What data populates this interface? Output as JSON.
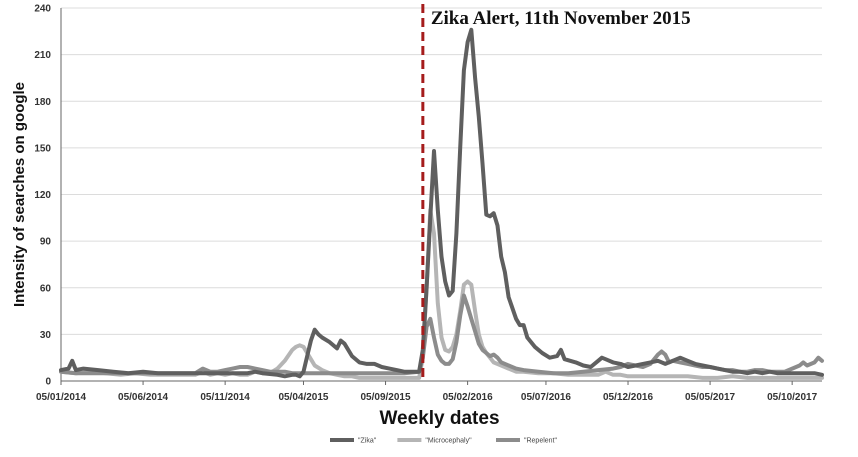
{
  "chart_data": {
    "type": "line",
    "title": "",
    "xlabel": "Weekly dates",
    "ylabel": "Intensity of searches on google",
    "ylim": [
      0,
      240
    ],
    "yticks": [
      0,
      30,
      60,
      90,
      120,
      150,
      180,
      210,
      240
    ],
    "xtick_labels": [
      "05/01/2014",
      "05/06/2014",
      "05/11/2014",
      "05/04/2015",
      "05/09/2015",
      "05/02/2016",
      "05/07/2016",
      "05/12/2016",
      "05/05/2017",
      "05/10/2017"
    ],
    "xtick_weeks": [
      0,
      22,
      44,
      65,
      87,
      109,
      130,
      152,
      174,
      196
    ],
    "x_range_weeks": [
      0,
      204
    ],
    "grid": true,
    "legend_position": "bottom",
    "annotation": {
      "text": "Zika Alert, 11th November 2015",
      "week": 97
    },
    "series": [
      {
        "name": "\"Zika\"",
        "color": "#5f5f5f",
        "points": [
          [
            0,
            7
          ],
          [
            2,
            8
          ],
          [
            3,
            13
          ],
          [
            4,
            7
          ],
          [
            6,
            8
          ],
          [
            10,
            7
          ],
          [
            14,
            6
          ],
          [
            18,
            5
          ],
          [
            22,
            6
          ],
          [
            26,
            5
          ],
          [
            30,
            5
          ],
          [
            34,
            5
          ],
          [
            38,
            5
          ],
          [
            42,
            5
          ],
          [
            46,
            5
          ],
          [
            50,
            5
          ],
          [
            52,
            6
          ],
          [
            54,
            5
          ],
          [
            58,
            4
          ],
          [
            60,
            3
          ],
          [
            62,
            4
          ],
          [
            63,
            4
          ],
          [
            64,
            3
          ],
          [
            65,
            6
          ],
          [
            66,
            16
          ],
          [
            67,
            26
          ],
          [
            68,
            33
          ],
          [
            69,
            30
          ],
          [
            70,
            28
          ],
          [
            72,
            25
          ],
          [
            74,
            21
          ],
          [
            75,
            26
          ],
          [
            76,
            24
          ],
          [
            78,
            16
          ],
          [
            80,
            12
          ],
          [
            82,
            11
          ],
          [
            84,
            11
          ],
          [
            86,
            9
          ],
          [
            88,
            8
          ],
          [
            90,
            7
          ],
          [
            92,
            6
          ],
          [
            94,
            6
          ],
          [
            96,
            6
          ],
          [
            97,
            20
          ],
          [
            98,
            60
          ],
          [
            99,
            105
          ],
          [
            100,
            148
          ],
          [
            101,
            110
          ],
          [
            102,
            80
          ],
          [
            103,
            64
          ],
          [
            104,
            55
          ],
          [
            105,
            58
          ],
          [
            106,
            95
          ],
          [
            107,
            150
          ],
          [
            108,
            200
          ],
          [
            109,
            218
          ],
          [
            110,
            226
          ],
          [
            111,
            195
          ],
          [
            112,
            170
          ],
          [
            113,
            140
          ],
          [
            114,
            107
          ],
          [
            115,
            106
          ],
          [
            116,
            108
          ],
          [
            117,
            100
          ],
          [
            118,
            80
          ],
          [
            119,
            70
          ],
          [
            120,
            54
          ],
          [
            122,
            40
          ],
          [
            123,
            36
          ],
          [
            124,
            36
          ],
          [
            125,
            28
          ],
          [
            127,
            22
          ],
          [
            129,
            18
          ],
          [
            131,
            15
          ],
          [
            133,
            16
          ],
          [
            134,
            20
          ],
          [
            135,
            14
          ],
          [
            138,
            12
          ],
          [
            140,
            10
          ],
          [
            142,
            9
          ],
          [
            144,
            13
          ],
          [
            145,
            15
          ],
          [
            146,
            14
          ],
          [
            148,
            12
          ],
          [
            150,
            11
          ],
          [
            152,
            9
          ],
          [
            154,
            10
          ],
          [
            156,
            11
          ],
          [
            158,
            12
          ],
          [
            160,
            13
          ],
          [
            162,
            11
          ],
          [
            164,
            13
          ],
          [
            166,
            15
          ],
          [
            168,
            13
          ],
          [
            170,
            11
          ],
          [
            172,
            10
          ],
          [
            174,
            9
          ],
          [
            176,
            8
          ],
          [
            178,
            7
          ],
          [
            180,
            6
          ],
          [
            182,
            6
          ],
          [
            184,
            5
          ],
          [
            186,
            6
          ],
          [
            188,
            5
          ],
          [
            190,
            6
          ],
          [
            192,
            5
          ],
          [
            194,
            5
          ],
          [
            196,
            5
          ],
          [
            198,
            5
          ],
          [
            200,
            5
          ],
          [
            202,
            5
          ],
          [
            204,
            4
          ]
        ]
      },
      {
        "name": "\"Microcephaly\"",
        "color": "#b5b5b5",
        "points": [
          [
            0,
            6
          ],
          [
            4,
            5
          ],
          [
            8,
            6
          ],
          [
            12,
            5
          ],
          [
            16,
            4
          ],
          [
            20,
            5
          ],
          [
            24,
            4
          ],
          [
            28,
            4
          ],
          [
            32,
            4
          ],
          [
            36,
            4
          ],
          [
            38,
            6
          ],
          [
            40,
            4
          ],
          [
            42,
            5
          ],
          [
            44,
            4
          ],
          [
            46,
            5
          ],
          [
            48,
            4
          ],
          [
            50,
            4
          ],
          [
            52,
            6
          ],
          [
            54,
            5
          ],
          [
            56,
            5
          ],
          [
            58,
            8
          ],
          [
            60,
            13
          ],
          [
            62,
            20
          ],
          [
            63,
            22
          ],
          [
            64,
            23
          ],
          [
            65,
            22
          ],
          [
            66,
            18
          ],
          [
            67,
            14
          ],
          [
            68,
            10
          ],
          [
            70,
            7
          ],
          [
            72,
            5
          ],
          [
            74,
            4
          ],
          [
            76,
            3
          ],
          [
            78,
            3
          ],
          [
            80,
            2
          ],
          [
            84,
            2
          ],
          [
            88,
            2
          ],
          [
            92,
            2
          ],
          [
            96,
            2
          ],
          [
            97,
            15
          ],
          [
            98,
            60
          ],
          [
            99,
            110
          ],
          [
            100,
            95
          ],
          [
            101,
            50
          ],
          [
            102,
            28
          ],
          [
            103,
            20
          ],
          [
            104,
            19
          ],
          [
            105,
            22
          ],
          [
            106,
            30
          ],
          [
            107,
            45
          ],
          [
            108,
            62
          ],
          [
            109,
            64
          ],
          [
            110,
            62
          ],
          [
            111,
            45
          ],
          [
            112,
            30
          ],
          [
            113,
            22
          ],
          [
            114,
            18
          ],
          [
            115,
            15
          ],
          [
            116,
            12
          ],
          [
            118,
            10
          ],
          [
            120,
            8
          ],
          [
            122,
            6
          ],
          [
            124,
            6
          ],
          [
            128,
            5
          ],
          [
            132,
            5
          ],
          [
            136,
            4
          ],
          [
            140,
            4
          ],
          [
            144,
            4
          ],
          [
            146,
            6
          ],
          [
            148,
            4
          ],
          [
            150,
            4
          ],
          [
            152,
            3
          ],
          [
            156,
            3
          ],
          [
            160,
            3
          ],
          [
            164,
            3
          ],
          [
            168,
            3
          ],
          [
            172,
            2
          ],
          [
            176,
            2
          ],
          [
            180,
            3
          ],
          [
            184,
            2
          ],
          [
            188,
            2
          ],
          [
            192,
            2
          ],
          [
            196,
            2
          ],
          [
            200,
            2
          ],
          [
            204,
            2
          ]
        ]
      },
      {
        "name": "\"Repelent\"",
        "color": "#8c8c8c",
        "points": [
          [
            0,
            6
          ],
          [
            4,
            5
          ],
          [
            8,
            5
          ],
          [
            12,
            5
          ],
          [
            16,
            5
          ],
          [
            20,
            5
          ],
          [
            24,
            5
          ],
          [
            28,
            5
          ],
          [
            32,
            5
          ],
          [
            36,
            5
          ],
          [
            38,
            8
          ],
          [
            40,
            6
          ],
          [
            42,
            6
          ],
          [
            44,
            7
          ],
          [
            46,
            8
          ],
          [
            48,
            9
          ],
          [
            50,
            9
          ],
          [
            52,
            8
          ],
          [
            54,
            7
          ],
          [
            56,
            6
          ],
          [
            58,
            6
          ],
          [
            60,
            6
          ],
          [
            62,
            5
          ],
          [
            64,
            5
          ],
          [
            66,
            5
          ],
          [
            68,
            5
          ],
          [
            70,
            5
          ],
          [
            72,
            5
          ],
          [
            74,
            5
          ],
          [
            76,
            5
          ],
          [
            78,
            5
          ],
          [
            80,
            5
          ],
          [
            84,
            5
          ],
          [
            88,
            5
          ],
          [
            92,
            5
          ],
          [
            96,
            6
          ],
          [
            97,
            15
          ],
          [
            98,
            35
          ],
          [
            99,
            40
          ],
          [
            100,
            28
          ],
          [
            101,
            17
          ],
          [
            102,
            13
          ],
          [
            103,
            11
          ],
          [
            104,
            11
          ],
          [
            105,
            14
          ],
          [
            106,
            25
          ],
          [
            107,
            42
          ],
          [
            108,
            55
          ],
          [
            109,
            48
          ],
          [
            110,
            40
          ],
          [
            111,
            32
          ],
          [
            112,
            24
          ],
          [
            113,
            20
          ],
          [
            114,
            18
          ],
          [
            115,
            16
          ],
          [
            116,
            17
          ],
          [
            117,
            15
          ],
          [
            118,
            12
          ],
          [
            120,
            10
          ],
          [
            122,
            8
          ],
          [
            124,
            7
          ],
          [
            128,
            6
          ],
          [
            132,
            5
          ],
          [
            136,
            5
          ],
          [
            140,
            6
          ],
          [
            144,
            7
          ],
          [
            148,
            8
          ],
          [
            150,
            9
          ],
          [
            152,
            11
          ],
          [
            154,
            10
          ],
          [
            156,
            9
          ],
          [
            158,
            11
          ],
          [
            160,
            17
          ],
          [
            161,
            19
          ],
          [
            162,
            17
          ],
          [
            163,
            12
          ],
          [
            164,
            13
          ],
          [
            166,
            12
          ],
          [
            168,
            11
          ],
          [
            170,
            10
          ],
          [
            172,
            9
          ],
          [
            174,
            9
          ],
          [
            176,
            8
          ],
          [
            178,
            7
          ],
          [
            180,
            7
          ],
          [
            182,
            6
          ],
          [
            184,
            6
          ],
          [
            186,
            7
          ],
          [
            188,
            7
          ],
          [
            190,
            6
          ],
          [
            192,
            6
          ],
          [
            194,
            6
          ],
          [
            196,
            8
          ],
          [
            198,
            10
          ],
          [
            199,
            12
          ],
          [
            200,
            10
          ],
          [
            202,
            12
          ],
          [
            203,
            15
          ],
          [
            204,
            13
          ]
        ]
      }
    ]
  }
}
